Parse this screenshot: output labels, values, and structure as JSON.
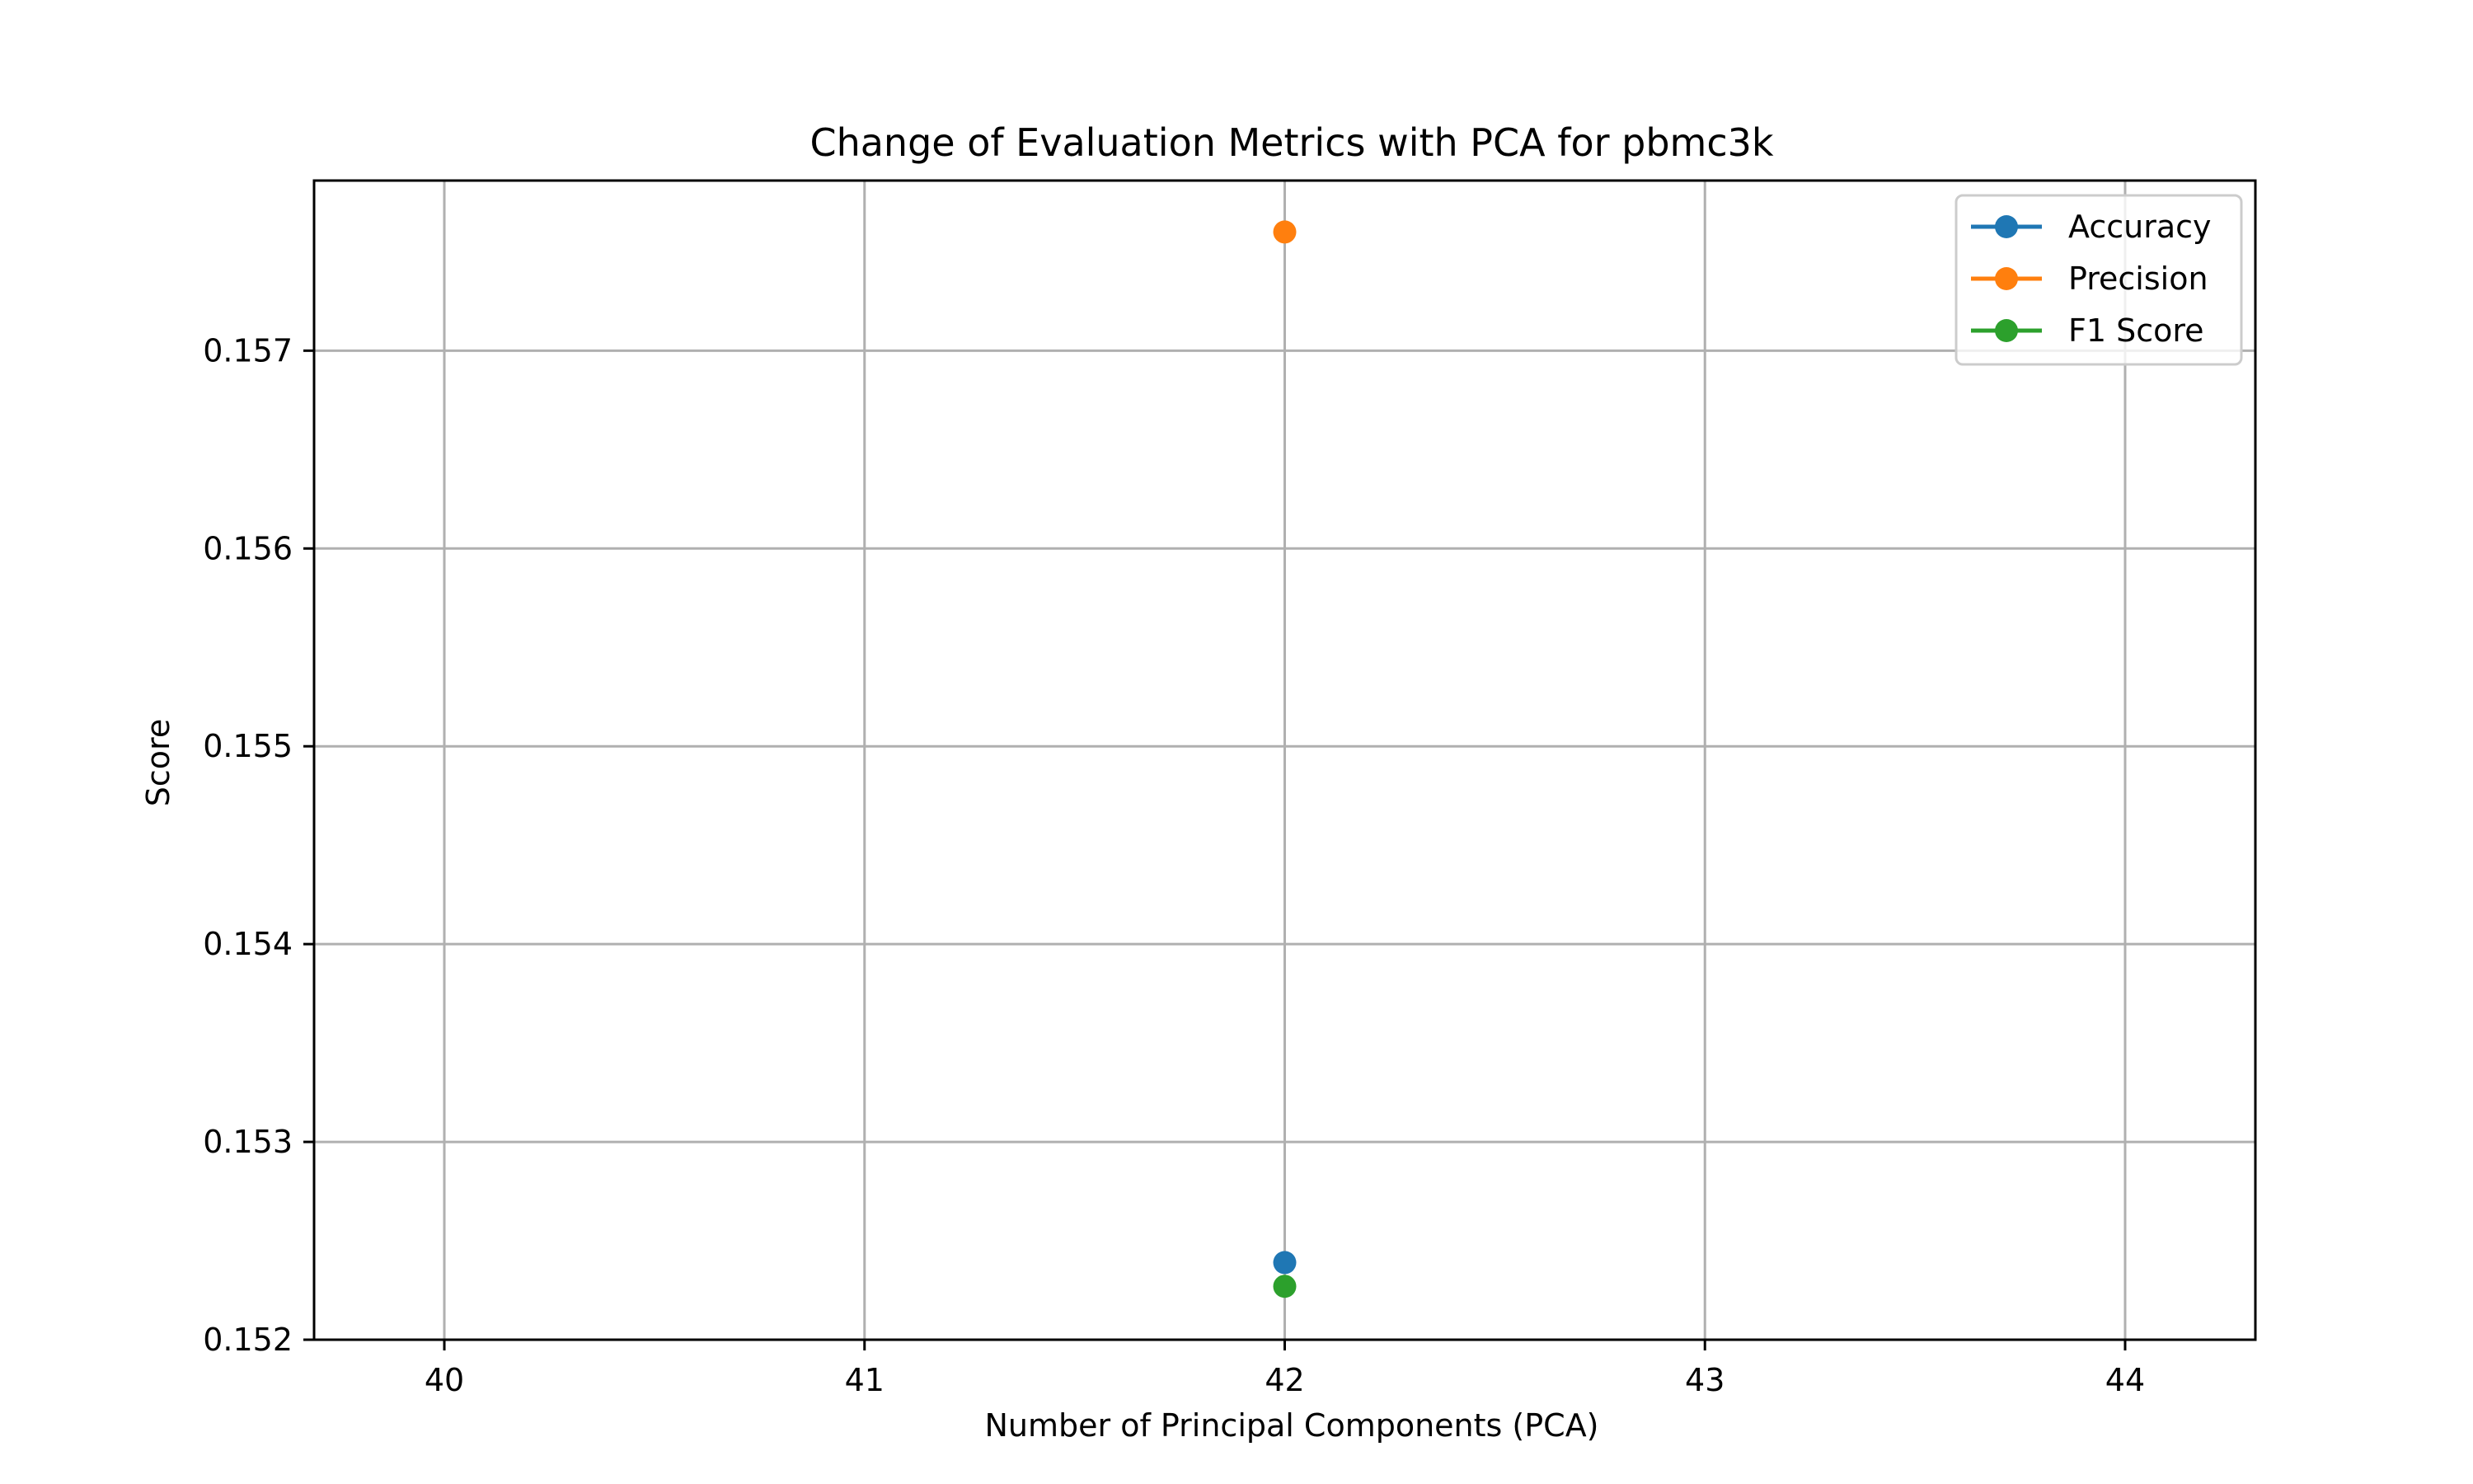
{
  "chart_data": {
    "type": "scatter",
    "title": "Change of Evaluation Metrics with PCA for pbmc3k",
    "xlabel": "Number of Principal Components (PCA)",
    "ylabel": "Score",
    "xlim": [
      39.69,
      44.31
    ],
    "ylim": [
      0.152,
      0.15786
    ],
    "xticks": [
      40,
      41,
      42,
      43,
      44
    ],
    "xtick_labels": [
      "40",
      "41",
      "42",
      "43",
      "44"
    ],
    "yticks": [
      0.152,
      0.153,
      0.154,
      0.155,
      0.156,
      0.157
    ],
    "ytick_labels": [
      "0.152",
      "0.153",
      "0.154",
      "0.155",
      "0.156",
      "0.157"
    ],
    "grid": true,
    "legend_position": "top-right",
    "series": [
      {
        "name": "Accuracy",
        "color": "#1f77b4",
        "x": [
          42
        ],
        "y": [
          0.15239
        ]
      },
      {
        "name": "Precision",
        "color": "#ff7f0e",
        "x": [
          42
        ],
        "y": [
          0.1576
        ]
      },
      {
        "name": "F1 Score",
        "color": "#2ca02c",
        "x": [
          42
        ],
        "y": [
          0.15227
        ]
      }
    ]
  }
}
